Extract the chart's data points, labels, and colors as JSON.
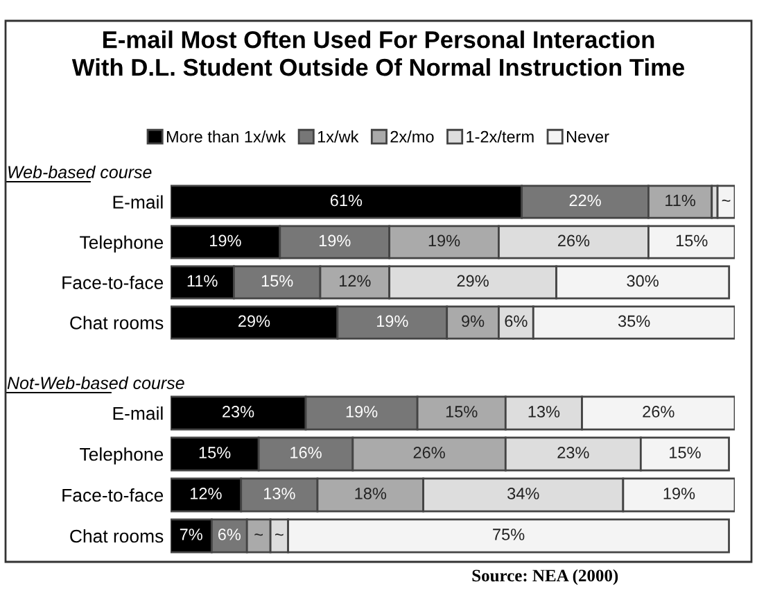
{
  "chart_data": [
    {
      "type": "bar",
      "orientation": "horizontal",
      "stacked": true,
      "title": "E-mail Most Often Used For Personal Interaction\nWith D.L. Student Outside Of Normal Instruction Time",
      "annotations": [
        "Web-based course"
      ],
      "legend": "top",
      "categories": [
        "E-mail",
        "Telephone",
        "Face-to-face",
        "Chat rooms"
      ],
      "series": [
        {
          "name": "More than 1x/wk",
          "color": "#000000",
          "values": [
            61,
            19,
            11,
            29
          ],
          "value_labels": [
            "61%",
            "19%",
            "11%",
            "29%"
          ]
        },
        {
          "name": "1x/wk",
          "color": "#777777",
          "values": [
            22,
            19,
            15,
            19
          ],
          "value_labels": [
            "22%",
            "19%",
            "15%",
            "19%"
          ]
        },
        {
          "name": "2x/mo",
          "color": "#aaaaaa",
          "values": [
            11,
            19,
            12,
            9
          ],
          "value_labels": [
            "11%",
            "19%",
            "12%",
            "9%"
          ]
        },
        {
          "name": "1-2x/term",
          "color": "#dddddd",
          "values": [
            1,
            26,
            29,
            6
          ],
          "value_labels": [
            null,
            "26%",
            "29%",
            "6%"
          ]
        },
        {
          "name": "Never",
          "color": "#f4f4f4",
          "values": [
            3,
            15,
            30,
            35
          ],
          "value_labels": [
            "~",
            "15%",
            "30%",
            "35%"
          ]
        }
      ]
    },
    {
      "type": "bar",
      "orientation": "horizontal",
      "stacked": true,
      "annotations": [
        "Not-Web-based course",
        "Source: NEA (2000)"
      ],
      "categories": [
        "E-mail",
        "Telephone",
        "Face-to-face",
        "Chat rooms"
      ],
      "series": [
        {
          "color": "#000000",
          "values": [
            23,
            15,
            12,
            7
          ],
          "value_labels": [
            "23%",
            "15%",
            "12%",
            "7%"
          ]
        },
        {
          "color": "#777777",
          "values": [
            19,
            16,
            13,
            6
          ],
          "value_labels": [
            "19%",
            "16%",
            "13%",
            "6%"
          ]
        },
        {
          "color": "#aaaaaa",
          "values": [
            15,
            26,
            18,
            4
          ],
          "value_labels": [
            "15%",
            "26%",
            "18%",
            "~"
          ]
        },
        {
          "color": "#dddddd",
          "values": [
            13,
            23,
            34,
            3
          ],
          "value_labels": [
            "13%",
            "23%",
            "34%",
            "~"
          ]
        },
        {
          "color": "#f4f4f4",
          "values": [
            26,
            15,
            19,
            75
          ],
          "value_labels": [
            "26%",
            "15%",
            "19%",
            "75%"
          ]
        }
      ]
    }
  ]
}
